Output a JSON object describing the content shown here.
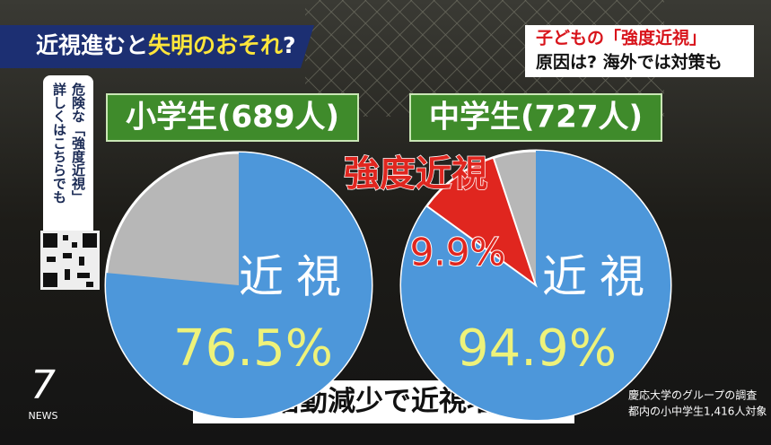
{
  "banner": {
    "left": [
      "近視進むと",
      "失明のおそれ",
      "?"
    ],
    "right_title": "子どもの「強度近視」",
    "right_sub": "原因は? 海外では対策も"
  },
  "qr_note": [
    "危険な「強度近視」",
    "詳しくはこちらでも"
  ],
  "chart_data": [
    {
      "type": "pie",
      "title": "小学生(689人)",
      "categories": [
        "近視"
      ],
      "values": [
        76.5
      ],
      "value_labels": [
        "76.5%"
      ],
      "colors": [
        "#4d97da"
      ],
      "rest_color": "#b7b7b7"
    },
    {
      "type": "pie",
      "title": "中学生(727人)",
      "categories": [
        "近視",
        "強度近視"
      ],
      "values": [
        94.9,
        9.9
      ],
      "value_labels": [
        "94.9%",
        "9.9%"
      ],
      "colors": [
        "#4d97da",
        "#e0261f"
      ],
      "rest_color": "#b7b7b7"
    }
  ],
  "caption": "屋外活動減少で近視増加か",
  "source": [
    "慶応大学のグループの調査",
    "都内の小中学生1,416人対象"
  ],
  "logo": {
    "number": "7",
    "text": "NEWS"
  }
}
